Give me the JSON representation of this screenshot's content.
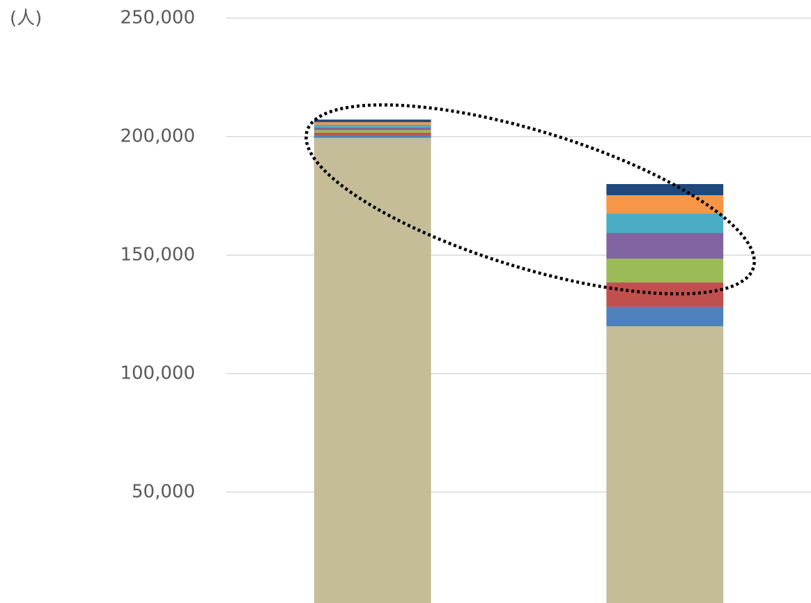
{
  "chart_data": {
    "type": "stacked_bar",
    "y_axis_label": "(人)",
    "categories": [
      null,
      null
    ],
    "series": [
      {
        "color": "#c4bd97",
        "values": [
          199500,
          120000
        ]
      },
      {
        "color": "#4f81bd",
        "values": [
          1100,
          8200
        ]
      },
      {
        "color": "#c0504d",
        "values": [
          1100,
          10300
        ]
      },
      {
        "color": "#9bbb59",
        "values": [
          1100,
          10000
        ]
      },
      {
        "color": "#8064a2",
        "values": [
          1100,
          10900
        ]
      },
      {
        "color": "#4bacc6",
        "values": [
          1100,
          8200
        ]
      },
      {
        "color": "#f79646",
        "values": [
          1100,
          7700
        ]
      },
      {
        "color": "#1f497d",
        "values": [
          1100,
          4700
        ]
      }
    ],
    "ylim": [
      0,
      250000
    ],
    "yticks": [
      {
        "value": 50000,
        "label": "50,000"
      },
      {
        "value": 100000,
        "label": "100,000"
      },
      {
        "value": 150000,
        "label": "150,000"
      },
      {
        "value": 200000,
        "label": "200,000"
      },
      {
        "value": 250000,
        "label": "250,000"
      }
    ],
    "grid": true
  }
}
